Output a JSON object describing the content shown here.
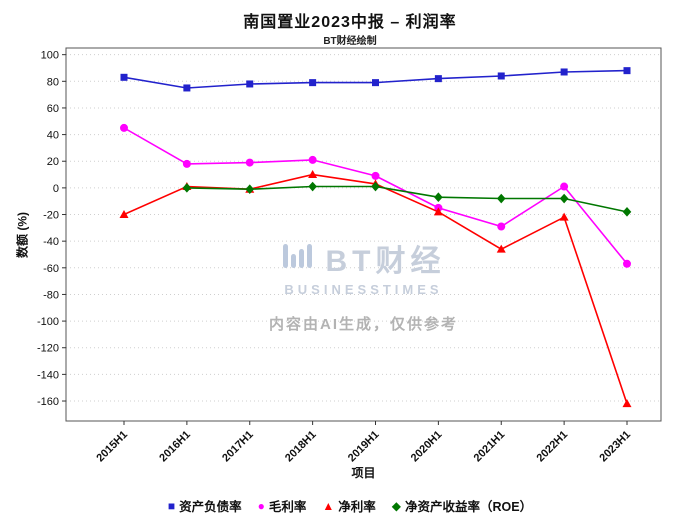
{
  "header": {
    "title": "南国置业2023中报 – 利润率",
    "subtitle": "BT财经绘制"
  },
  "chart_data": {
    "type": "line",
    "title": "南国置业2023中报 – 利润率",
    "subtitle": "BT财经绘制",
    "xlabel": "项目",
    "ylabel": "数额 (%)",
    "categories": [
      "2015H1",
      "2016H1",
      "2017H1",
      "2018H1",
      "2019H1",
      "2020H1",
      "2021H1",
      "2022H1",
      "2023H1"
    ],
    "series": [
      {
        "name": "资产负债率",
        "color": "#2222cc",
        "marker": "square",
        "values": [
          83,
          75,
          78,
          79,
          79,
          82,
          84,
          87,
          88
        ]
      },
      {
        "name": "毛利率",
        "color": "#ff00ff",
        "marker": "circle",
        "values": [
          45,
          18,
          19,
          21,
          9,
          -15,
          -29,
          1,
          -57
        ]
      },
      {
        "name": "净利率",
        "color": "#ff0000",
        "marker": "triangle",
        "values": [
          -20,
          1,
          -1,
          10,
          3,
          -18,
          -46,
          -22,
          -162
        ]
      },
      {
        "name": "净资产收益率（ROE）",
        "color": "#007700",
        "marker": "diamond",
        "values": [
          null,
          0,
          -1,
          1,
          1,
          -7,
          -8,
          -8,
          -18
        ]
      }
    ],
    "ylim": [
      -175,
      105
    ],
    "yticks": [
      100,
      80,
      60,
      40,
      20,
      0,
      -20,
      -40,
      -60,
      -80,
      -100,
      -120,
      -140,
      -160
    ],
    "grid": "horizontal-dotted",
    "legend_position": "bottom"
  },
  "watermark": {
    "logo_text": "BT财经",
    "logo_subtext": "BUSINESSTIMES",
    "note": "内容由AI生成，仅供参考"
  }
}
